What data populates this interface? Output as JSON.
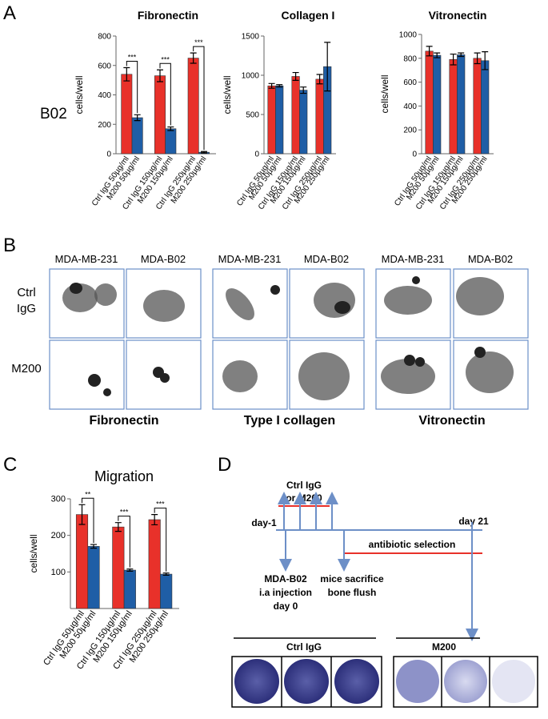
{
  "panel_labels": [
    "A",
    "B",
    "C",
    "D"
  ],
  "panel_a_row_label": "B02",
  "chart_data": [
    {
      "type": "bar",
      "title": "Fibronectin",
      "y_label": "cells/well",
      "categories": [
        "Ctrl IgG 50µg/ml",
        "M200 50µg/ml",
        "Ctrl IgG 150µg/ml",
        "M200 150µg/ml",
        "Ctrl IgG 250µg/ml",
        "M200 250µg/ml"
      ],
      "values": [
        540,
        245,
        530,
        170,
        650,
        10
      ],
      "errors": [
        45,
        20,
        40,
        12,
        35,
        5
      ],
      "colors": [
        "#e8312a",
        "#1f5ea6"
      ],
      "significance": [
        "***",
        "***",
        "***"
      ],
      "ylim": [
        0,
        800
      ],
      "yticks": [
        0,
        200,
        400,
        600,
        800
      ]
    },
    {
      "type": "bar",
      "title": "Collagen I",
      "y_label": "cells/well",
      "categories": [
        "Ctrl IgG 50µg/ml",
        "M200 50µg/ml",
        "Ctrl IgG 150µg/ml",
        "M200 150µg/ml",
        "Ctrl IgG 250µg/ml",
        "M200 250µg/ml"
      ],
      "values": [
        865,
        865,
        985,
        810,
        950,
        1110
      ],
      "errors": [
        30,
        15,
        50,
        40,
        60,
        310
      ],
      "colors": [
        "#e8312a",
        "#1f5ea6"
      ],
      "ylim": [
        0,
        1500
      ],
      "yticks": [
        0,
        500,
        1000,
        1500
      ]
    },
    {
      "type": "bar",
      "title": "Vitronectin",
      "y_label": "cells/well",
      "categories": [
        "Ctrl IgG 50µg/ml",
        "M200 50µg/ml",
        "Ctrl IgG 150µg/ml",
        "M200 150µg/ml",
        "Ctrl IgG 250µg/ml",
        "M200 250µg/ml"
      ],
      "values": [
        860,
        825,
        790,
        830,
        800,
        780
      ],
      "errors": [
        40,
        20,
        45,
        15,
        45,
        75
      ],
      "colors": [
        "#e8312a",
        "#1f5ea6"
      ],
      "ylim": [
        0,
        1000
      ],
      "yticks": [
        0,
        200,
        400,
        600,
        800,
        1000
      ]
    },
    {
      "type": "bar",
      "title": "Migration",
      "y_label": "cells/well",
      "categories": [
        "Ctrl IgG 50µg/ml",
        "M200 50µg/ml",
        "Ctrl IgG 150µg/ml",
        "M200 150µg/ml",
        "Ctrl IgG 250µg/ml",
        "M200 250µg/ml"
      ],
      "values": [
        257,
        170,
        223,
        105,
        243,
        94
      ],
      "errors": [
        27,
        5,
        12,
        3,
        14,
        3
      ],
      "colors": [
        "#e8312a",
        "#1f5ea6"
      ],
      "significance": [
        "**",
        "***",
        "***"
      ],
      "ylim": [
        0,
        300
      ],
      "yticks": [
        100,
        200,
        300
      ]
    }
  ],
  "panel_b": {
    "columns": [
      "MDA-MB-231",
      "MDA-B02",
      "MDA-MB-231",
      "MDA-B02",
      "MDA-MB-231",
      "MDA-B02"
    ],
    "rows": [
      [
        "Ctrl",
        "IgG"
      ],
      [
        "M200"
      ]
    ],
    "substrates": [
      "Fibronectin",
      "Type I collagen",
      "Vitronectin"
    ]
  },
  "panel_d": {
    "treatment": [
      "Ctrl IgG",
      "or M200"
    ],
    "day_start": "day-1",
    "day_end": "day 21",
    "selection": "antibiotic selection",
    "injection": [
      "MDA-B02",
      "i.a injection",
      "day 0"
    ],
    "sacrifice": [
      "mice sacrifice",
      "bone flush"
    ],
    "groups": [
      "Ctrl IgG",
      "M200"
    ]
  }
}
